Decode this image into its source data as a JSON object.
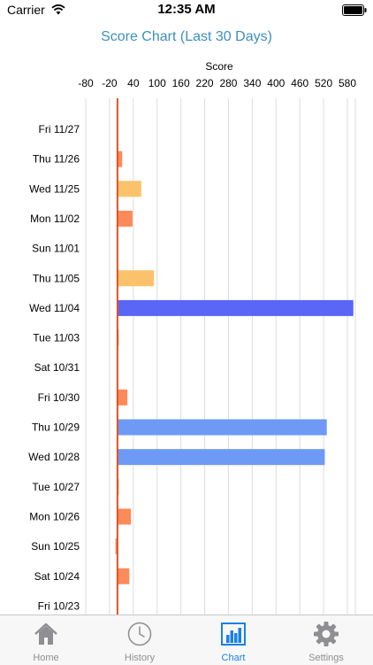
{
  "status_bar": {
    "carrier": "Carrier",
    "time": "12:35 AM"
  },
  "header": {
    "title": "Score Chart (Last 30 Days)"
  },
  "colors": {
    "accent": "#3d8fbd",
    "bar_low": "#fd8a5b",
    "bar_mid": "#fcc26b",
    "bar_high": "#6e99f5",
    "bar_top": "#5a66f6",
    "zero_line": "#e0521f",
    "tab_active": "#1a82e2",
    "tab_inactive": "#8e8e93"
  },
  "chart_data": {
    "type": "bar",
    "orientation": "horizontal",
    "xlabel": "Score",
    "axis_position": "top",
    "xlim": [
      -80,
      600
    ],
    "ticks": [
      -80,
      -20,
      40,
      100,
      160,
      220,
      280,
      340,
      400,
      460,
      520,
      580
    ],
    "tick_labels": [
      "-80",
      "-20",
      "40",
      "100",
      "160",
      "220",
      "280",
      "340",
      "400",
      "460",
      "520",
      "580"
    ],
    "grid": true,
    "reference_line": 0,
    "categories": [
      "Fri 11/27",
      "Thu 11/26",
      "Wed 11/25",
      "Mon 11/02",
      "Sun 11/01",
      "Thu 11/05",
      "Wed 11/04",
      "Tue 11/03",
      "Sat 10/31",
      "Fri 10/30",
      "Thu 10/29",
      "Wed 10/28",
      "Tue 10/27",
      "Mon 10/26",
      "Sun 10/25",
      "Sat 10/24",
      "Fri 10/23"
    ],
    "values": [
      0,
      12,
      60,
      38,
      0,
      92,
      595,
      3,
      0,
      25,
      528,
      523,
      2,
      34,
      -5,
      30,
      0
    ],
    "bar_colors": [
      "#fd8a5b",
      "#fd8a5b",
      "#fcc26b",
      "#fd8a5b",
      "#fd8a5b",
      "#fcc26b",
      "#5a66f6",
      "#fd8a5b",
      "#fd8a5b",
      "#fd8a5b",
      "#6e99f5",
      "#6e99f5",
      "#fd8a5b",
      "#fd8a5b",
      "#fd8a5b",
      "#fd8a5b",
      "#fd8a5b"
    ]
  },
  "tab_bar": {
    "items": [
      {
        "label": "Home",
        "icon": "home-icon"
      },
      {
        "label": "History",
        "icon": "clock-icon"
      },
      {
        "label": "Chart",
        "icon": "bar-chart-icon"
      },
      {
        "label": "Settings",
        "icon": "gear-icon"
      }
    ]
  }
}
